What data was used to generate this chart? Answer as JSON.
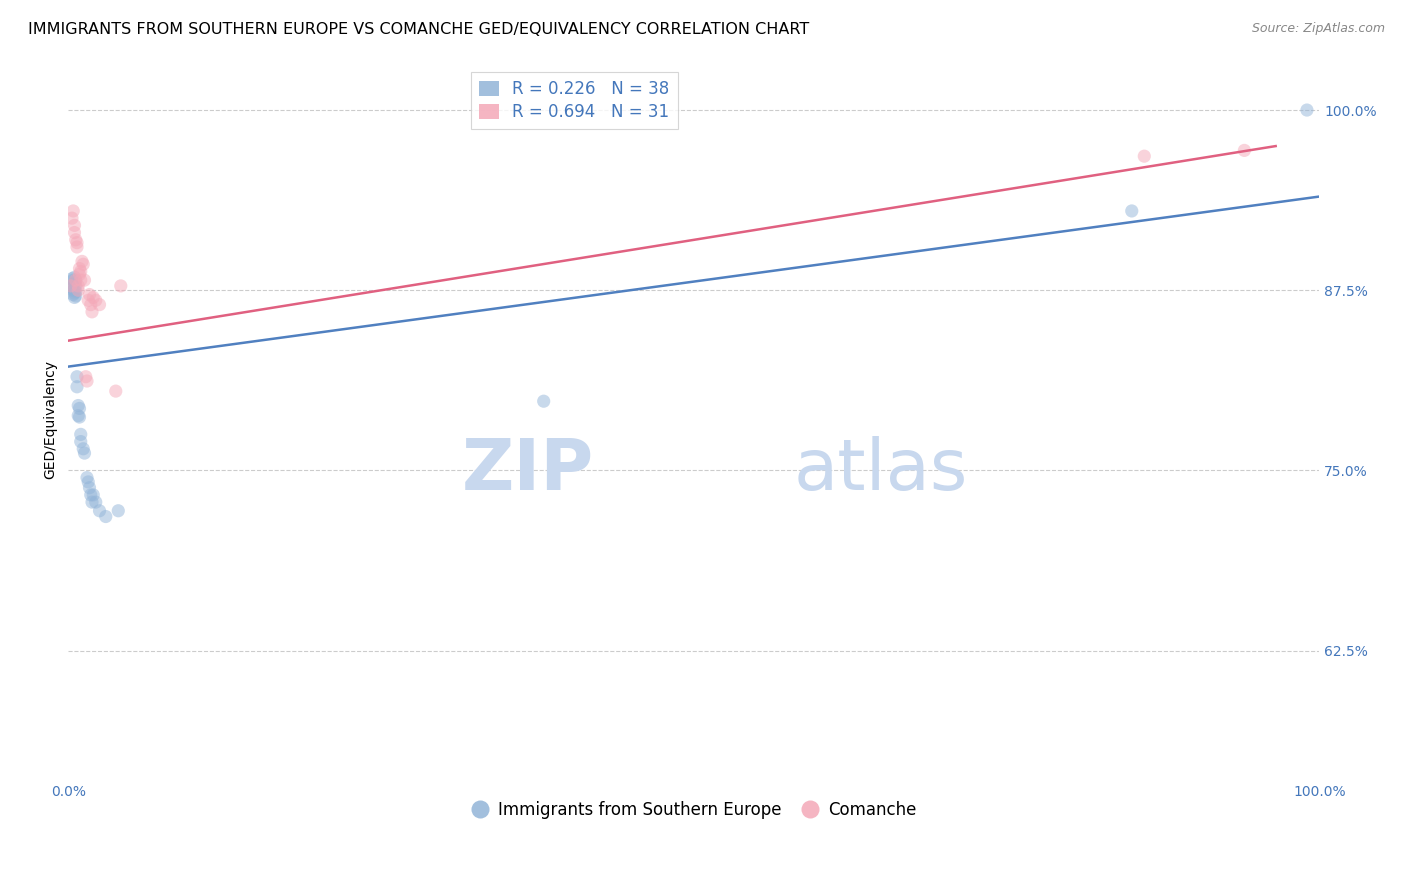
{
  "title": "IMMIGRANTS FROM SOUTHERN EUROPE VS COMANCHE GED/EQUIVALENCY CORRELATION CHART",
  "source_text": "Source: ZipAtlas.com",
  "ylabel": "GED/Equivalency",
  "ytick_labels": [
    "100.0%",
    "87.5%",
    "75.0%",
    "62.5%"
  ],
  "ytick_values": [
    1.0,
    0.875,
    0.75,
    0.625
  ],
  "xlim": [
    0.0,
    1.0
  ],
  "ylim": [
    0.535,
    1.035
  ],
  "legend_label_blue": "Immigrants from Southern Europe",
  "legend_label_pink": "Comanche",
  "blue_color": "#92B4D8",
  "pink_color": "#F4A8B8",
  "blue_line_color": "#5080C0",
  "pink_line_color": "#E06080",
  "watermark_zip": "ZIP",
  "watermark_atlas": "atlas",
  "watermark_color": "#C8D8EE",
  "blue_x": [
    0.003,
    0.003,
    0.004,
    0.004,
    0.004,
    0.004,
    0.005,
    0.005,
    0.005,
    0.005,
    0.005,
    0.006,
    0.006,
    0.006,
    0.006,
    0.007,
    0.007,
    0.008,
    0.008,
    0.009,
    0.009,
    0.01,
    0.01,
    0.012,
    0.013,
    0.015,
    0.016,
    0.017,
    0.018,
    0.019,
    0.02,
    0.022,
    0.025,
    0.03,
    0.04,
    0.38,
    0.85,
    0.99
  ],
  "blue_y": [
    0.883,
    0.877,
    0.882,
    0.879,
    0.875,
    0.872,
    0.884,
    0.88,
    0.876,
    0.873,
    0.87,
    0.882,
    0.878,
    0.874,
    0.871,
    0.815,
    0.808,
    0.795,
    0.788,
    0.793,
    0.787,
    0.775,
    0.77,
    0.765,
    0.762,
    0.745,
    0.742,
    0.738,
    0.733,
    0.728,
    0.733,
    0.728,
    0.722,
    0.718,
    0.722,
    0.798,
    0.93,
    1.0
  ],
  "pink_x": [
    0.002,
    0.003,
    0.004,
    0.005,
    0.005,
    0.006,
    0.006,
    0.007,
    0.007,
    0.008,
    0.008,
    0.009,
    0.009,
    0.01,
    0.01,
    0.011,
    0.012,
    0.013,
    0.014,
    0.015,
    0.016,
    0.017,
    0.018,
    0.019,
    0.02,
    0.022,
    0.025,
    0.038,
    0.042,
    0.86,
    0.94
  ],
  "pink_y": [
    0.878,
    0.925,
    0.93,
    0.92,
    0.915,
    0.91,
    0.882,
    0.908,
    0.905,
    0.878,
    0.875,
    0.89,
    0.886,
    0.882,
    0.888,
    0.895,
    0.893,
    0.882,
    0.815,
    0.812,
    0.868,
    0.872,
    0.865,
    0.86,
    0.87,
    0.868,
    0.865,
    0.805,
    0.878,
    0.968,
    0.972
  ],
  "blue_line_x0": 0.0,
  "blue_line_x1": 1.0,
  "blue_line_y0": 0.822,
  "blue_line_y1": 0.94,
  "pink_line_x0": 0.0,
  "pink_line_x1": 0.965,
  "pink_line_y0": 0.84,
  "pink_line_y1": 0.975,
  "title_fontsize": 11.5,
  "source_fontsize": 9,
  "axis_label_fontsize": 10,
  "tick_fontsize": 10,
  "legend_fontsize": 12,
  "watermark_fontsize_zip": 52,
  "watermark_fontsize_atlas": 52,
  "marker_size": 90,
  "marker_alpha": 0.5,
  "line_width": 1.8
}
